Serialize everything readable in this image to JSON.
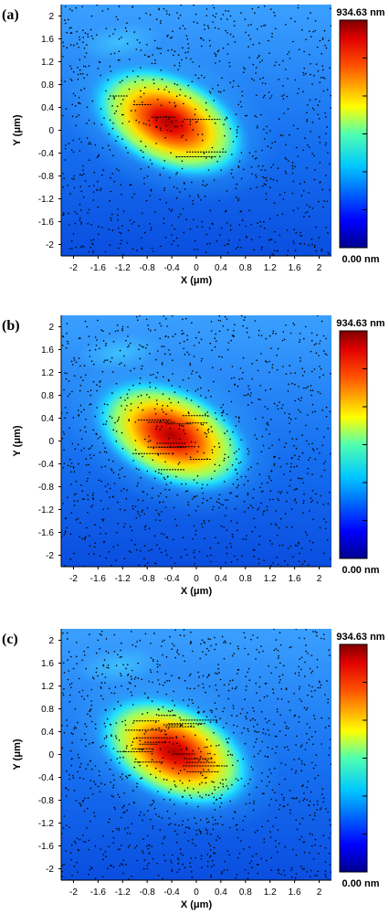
{
  "chart_data": [
    {
      "type": "heatmap",
      "panel_label": "(a)",
      "xlabel": "X (μm)",
      "ylabel": "Y (μm)",
      "xlim": [
        -2.2,
        2.2
      ],
      "ylim": [
        -2.2,
        2.2
      ],
      "x_ticks": [
        "-2",
        "-1.6",
        "-1.2",
        "-0.8",
        "-0.4",
        "0",
        "0.4",
        "0.8",
        "1.2",
        "1.6",
        "2"
      ],
      "y_ticks": [
        "2",
        "1.6",
        "1.2",
        "0.8",
        "0.4",
        "0",
        "-0.4",
        "-0.8",
        "-1.2",
        "-1.6",
        "-2"
      ],
      "colorbar": {
        "max_label": "934.63 nm",
        "min_label": "0.00 nm",
        "max": 934.63,
        "min": 0.0
      },
      "hotspot": {
        "center_x": -0.45,
        "center_y": 0.15,
        "peak_nm": 934.63
      }
    },
    {
      "type": "heatmap",
      "panel_label": "(b)",
      "xlabel": "X (μm)",
      "ylabel": "Y (μm)",
      "xlim": [
        -2.2,
        2.2
      ],
      "ylim": [
        -2.2,
        2.2
      ],
      "x_ticks": [
        "-2",
        "-1.6",
        "-1.2",
        "-0.8",
        "-0.4",
        "0",
        "0.4",
        "0.8",
        "1.2",
        "1.6",
        "2"
      ],
      "y_ticks": [
        "2",
        "1.6",
        "1.2",
        "0.8",
        "0.4",
        "0",
        "-0.4",
        "-0.8",
        "-1.2",
        "-1.6",
        "-2"
      ],
      "colorbar": {
        "max_label": "934.63 nm",
        "min_label": "0.00 nm",
        "max": 934.63,
        "min": 0.0
      },
      "hotspot": {
        "center_x": -0.4,
        "center_y": 0.1,
        "peak_nm": 934.63
      }
    },
    {
      "type": "heatmap",
      "panel_label": "(c)",
      "xlabel": "X (μm)",
      "ylabel": "Y (μm)",
      "xlim": [
        -2.2,
        2.2
      ],
      "ylim": [
        -2.2,
        2.2
      ],
      "x_ticks": [
        "-2",
        "-1.6",
        "-1.2",
        "-0.8",
        "-0.4",
        "0",
        "0.4",
        "0.8",
        "1.2",
        "1.6",
        "2"
      ],
      "y_ticks": [
        "2",
        "1.6",
        "1.2",
        "0.8",
        "0.4",
        "0",
        "-0.4",
        "-0.8",
        "-1.2",
        "-1.6",
        "-2"
      ],
      "colorbar": {
        "max_label": "934.63 nm",
        "min_label": "0.00 nm",
        "max": 934.63,
        "min": 0.0
      },
      "hotspot": {
        "center_x": -0.35,
        "center_y": 0.05,
        "peak_nm": 934.63
      }
    }
  ]
}
